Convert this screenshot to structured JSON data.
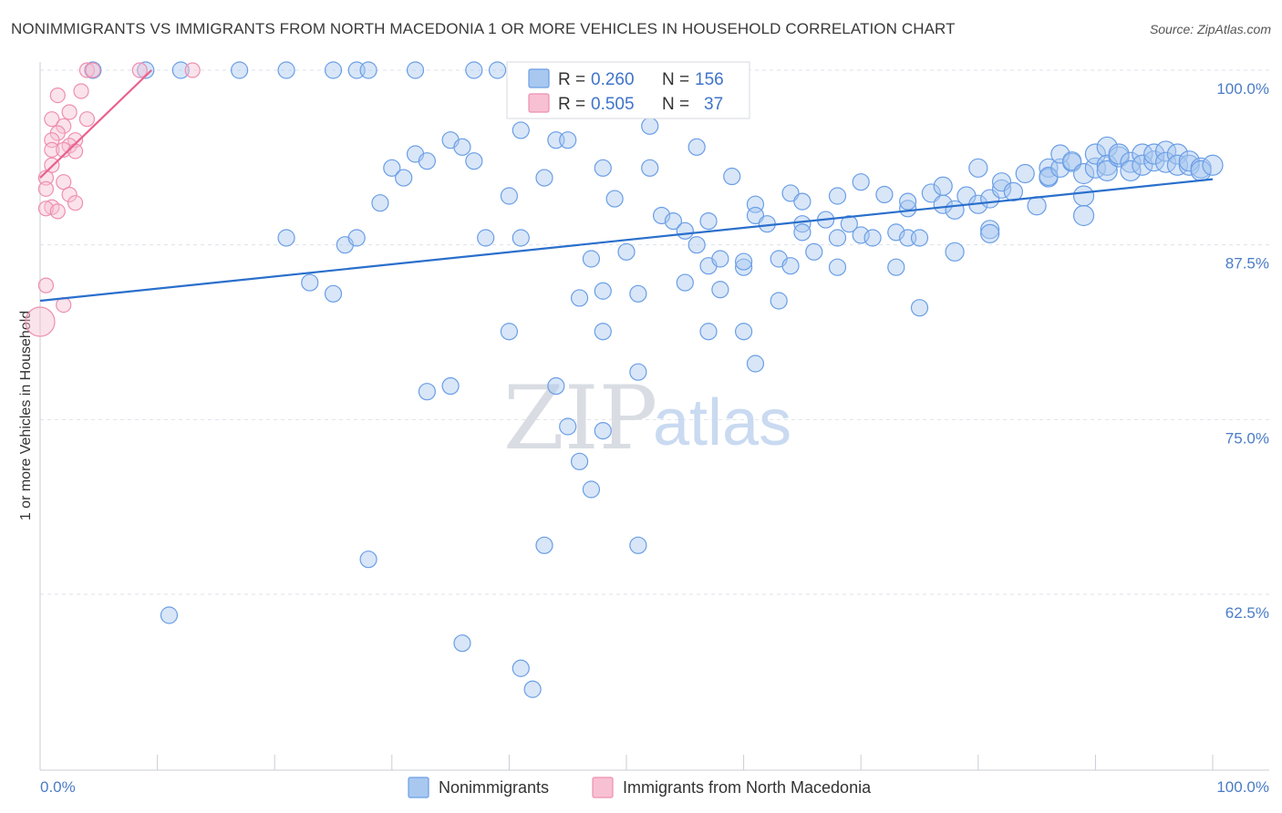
{
  "header": {
    "title": "NONIMMIGRANTS VS IMMIGRANTS FROM NORTH MACEDONIA 1 OR MORE VEHICLES IN HOUSEHOLD CORRELATION CHART",
    "source": "Source: ZipAtlas.com"
  },
  "colors": {
    "blue": "#6a9ee6",
    "blue_fill": "#a9c8f0",
    "blue_line": "#2a6fcc",
    "pink": "#ee8fb0",
    "pink_fill": "#f7c0d3",
    "pink_line": "#e8628e",
    "grid": "#dde2ea",
    "tick_text": "#4a7cc7"
  },
  "legend": {
    "rows": [
      {
        "r_label": "R =",
        "r_value": "0.260",
        "n_label": "N =",
        "n_value": "156"
      },
      {
        "r_label": "R =",
        "r_value": "0.505",
        "n_label": "N =",
        "n_value": "37"
      }
    ]
  },
  "bottom_legend": {
    "items": [
      {
        "label": "Nonimmigrants"
      },
      {
        "label": "Immigrants from North Macedonia"
      }
    ]
  },
  "watermark": {
    "zip": "ZIP",
    "atlas": "atlas"
  },
  "chart_data": {
    "type": "scatter",
    "title": "NONIMMIGRANTS VS IMMIGRANTS FROM NORTH MACEDONIA 1 OR MORE VEHICLES IN HOUSEHOLD CORRELATION CHART",
    "xlabel": "",
    "ylabel": "1 or more Vehicles in Household",
    "xlim": [
      0,
      100
    ],
    "ylim": [
      52,
      100.5
    ],
    "x_tick_labels": [
      "0.0%",
      "100.0%"
    ],
    "y_ticks": [
      {
        "value": 100,
        "label": "100.0%"
      },
      {
        "value": 87.5,
        "label": "87.5%"
      },
      {
        "value": 75,
        "label": "75.0%"
      },
      {
        "value": 62.5,
        "label": "62.5%"
      }
    ],
    "series": [
      {
        "name": "Nonimmigrants",
        "color": "blue",
        "r": 0.26,
        "n": 156,
        "trend": {
          "x0": 0,
          "y0": 83.5,
          "x1": 100,
          "y1": 92.2
        },
        "points": [
          [
            4.5,
            100
          ],
          [
            9,
            100
          ],
          [
            12,
            100
          ],
          [
            17,
            100
          ],
          [
            21,
            100
          ],
          [
            25,
            100
          ],
          [
            27,
            100
          ],
          [
            28,
            100
          ],
          [
            32,
            100
          ],
          [
            37,
            100
          ],
          [
            39,
            100
          ],
          [
            21,
            88
          ],
          [
            23,
            84.8
          ],
          [
            25,
            84
          ],
          [
            26,
            87.5
          ],
          [
            27,
            88
          ],
          [
            29,
            90.5
          ],
          [
            30,
            93
          ],
          [
            31,
            92.3
          ],
          [
            32,
            94
          ],
          [
            33,
            93.5
          ],
          [
            35,
            95
          ],
          [
            36,
            94.5
          ],
          [
            37,
            93.5
          ],
          [
            38,
            88
          ],
          [
            40,
            91
          ],
          [
            41,
            95.7
          ],
          [
            41,
            88
          ],
          [
            43,
            92.3
          ],
          [
            44,
            95
          ],
          [
            45,
            95
          ],
          [
            46,
            83.7
          ],
          [
            47,
            86.5
          ],
          [
            48,
            84.2
          ],
          [
            48,
            93
          ],
          [
            49,
            90.8
          ],
          [
            50,
            87
          ],
          [
            51,
            84
          ],
          [
            52,
            93
          ],
          [
            52,
            96
          ],
          [
            53,
            89.6
          ],
          [
            54,
            89.2
          ],
          [
            55,
            84.8
          ],
          [
            55,
            88.5
          ],
          [
            56,
            94.5
          ],
          [
            56,
            87.5
          ],
          [
            57,
            89.2
          ],
          [
            57,
            86
          ],
          [
            58,
            86.5
          ],
          [
            58,
            84.3
          ],
          [
            59,
            92.4
          ],
          [
            60,
            85.9
          ],
          [
            60,
            86.3
          ],
          [
            61,
            90.4
          ],
          [
            61,
            89.6
          ],
          [
            62,
            89
          ],
          [
            63,
            86.5
          ],
          [
            63,
            83.5
          ],
          [
            64,
            86
          ],
          [
            64,
            91.2
          ],
          [
            65,
            89
          ],
          [
            65,
            88.4
          ],
          [
            65,
            90.6
          ],
          [
            66,
            87
          ],
          [
            67,
            89.3
          ],
          [
            68,
            88
          ],
          [
            68,
            91
          ],
          [
            69,
            89
          ],
          [
            70,
            88.2
          ],
          [
            70,
            92
          ],
          [
            71,
            88
          ],
          [
            72,
            91.1
          ],
          [
            73,
            88.4
          ],
          [
            74,
            88
          ],
          [
            74,
            90.1
          ],
          [
            74,
            90.6
          ],
          [
            75,
            88
          ],
          [
            76,
            91.2
          ],
          [
            77,
            90.4
          ],
          [
            77,
            91.7
          ],
          [
            78,
            87
          ],
          [
            78,
            90
          ],
          [
            79,
            91
          ],
          [
            80,
            93
          ],
          [
            80,
            90.4
          ],
          [
            81,
            88.6
          ],
          [
            81,
            88.3
          ],
          [
            81,
            90.8
          ],
          [
            82,
            91.5
          ],
          [
            82,
            92
          ],
          [
            83,
            91.3
          ],
          [
            84,
            92.6
          ],
          [
            85,
            90.3
          ],
          [
            86,
            93
          ],
          [
            86,
            92.3
          ],
          [
            86,
            92.4
          ],
          [
            87,
            93
          ],
          [
            87,
            94
          ],
          [
            88,
            93.4
          ],
          [
            88,
            93.5
          ],
          [
            89,
            92.6
          ],
          [
            89,
            91
          ],
          [
            89,
            89.6
          ],
          [
            90,
            93
          ],
          [
            90,
            94
          ],
          [
            91,
            94.5
          ],
          [
            91,
            93.2
          ],
          [
            91,
            92.8
          ],
          [
            92,
            93.8
          ],
          [
            92,
            94
          ],
          [
            93,
            93.4
          ],
          [
            93,
            92.8
          ],
          [
            94,
            94
          ],
          [
            94,
            93.2
          ],
          [
            95,
            93.5
          ],
          [
            95,
            94
          ],
          [
            96,
            94.2
          ],
          [
            96,
            93.4
          ],
          [
            97,
            94
          ],
          [
            97,
            93.2
          ],
          [
            98,
            93.2
          ],
          [
            98,
            93.5
          ],
          [
            99,
            93
          ],
          [
            99,
            92.8
          ],
          [
            100,
            93.2
          ],
          [
            11,
            61
          ],
          [
            28,
            65
          ],
          [
            33,
            77
          ],
          [
            35,
            77.4
          ],
          [
            36,
            59
          ],
          [
            40,
            81.3
          ],
          [
            41,
            57.2
          ],
          [
            42,
            55.7
          ],
          [
            43,
            66
          ],
          [
            44,
            77.4
          ],
          [
            45,
            74.5
          ],
          [
            46,
            72
          ],
          [
            47,
            70
          ],
          [
            48,
            81.3
          ],
          [
            48,
            74.2
          ],
          [
            51,
            66
          ],
          [
            51,
            78.4
          ],
          [
            57,
            81.3
          ],
          [
            60,
            81.3
          ],
          [
            61,
            79
          ],
          [
            68,
            85.9
          ],
          [
            73,
            85.9
          ],
          [
            75,
            83
          ]
        ]
      },
      {
        "name": "Immigrants from North Macedonia",
        "color": "pink",
        "r": 0.505,
        "n": 37,
        "trend": {
          "x0": 0,
          "y0": 92.3,
          "x1": 9.5,
          "y1": 100
        },
        "points": [
          [
            4,
            100
          ],
          [
            4.5,
            100
          ],
          [
            8.5,
            100
          ],
          [
            13,
            100
          ],
          [
            1.5,
            98.2
          ],
          [
            3.5,
            98.5
          ],
          [
            2.5,
            97
          ],
          [
            4,
            96.5
          ],
          [
            1,
            96.5
          ],
          [
            2,
            96
          ],
          [
            3,
            95
          ],
          [
            1.5,
            95.5
          ],
          [
            1,
            95
          ],
          [
            2.5,
            94.6
          ],
          [
            1,
            94.3
          ],
          [
            2,
            94.3
          ],
          [
            3,
            94.2
          ],
          [
            1,
            93.2
          ],
          [
            0.5,
            92.3
          ],
          [
            2,
            92
          ],
          [
            0.5,
            91.5
          ],
          [
            2.5,
            91.1
          ],
          [
            3,
            90.5
          ],
          [
            1,
            90.2
          ],
          [
            0.5,
            90.1
          ],
          [
            1.5,
            89.9
          ],
          [
            0.5,
            84.6
          ],
          [
            2,
            83.2
          ],
          [
            0,
            82
          ]
        ]
      }
    ]
  }
}
